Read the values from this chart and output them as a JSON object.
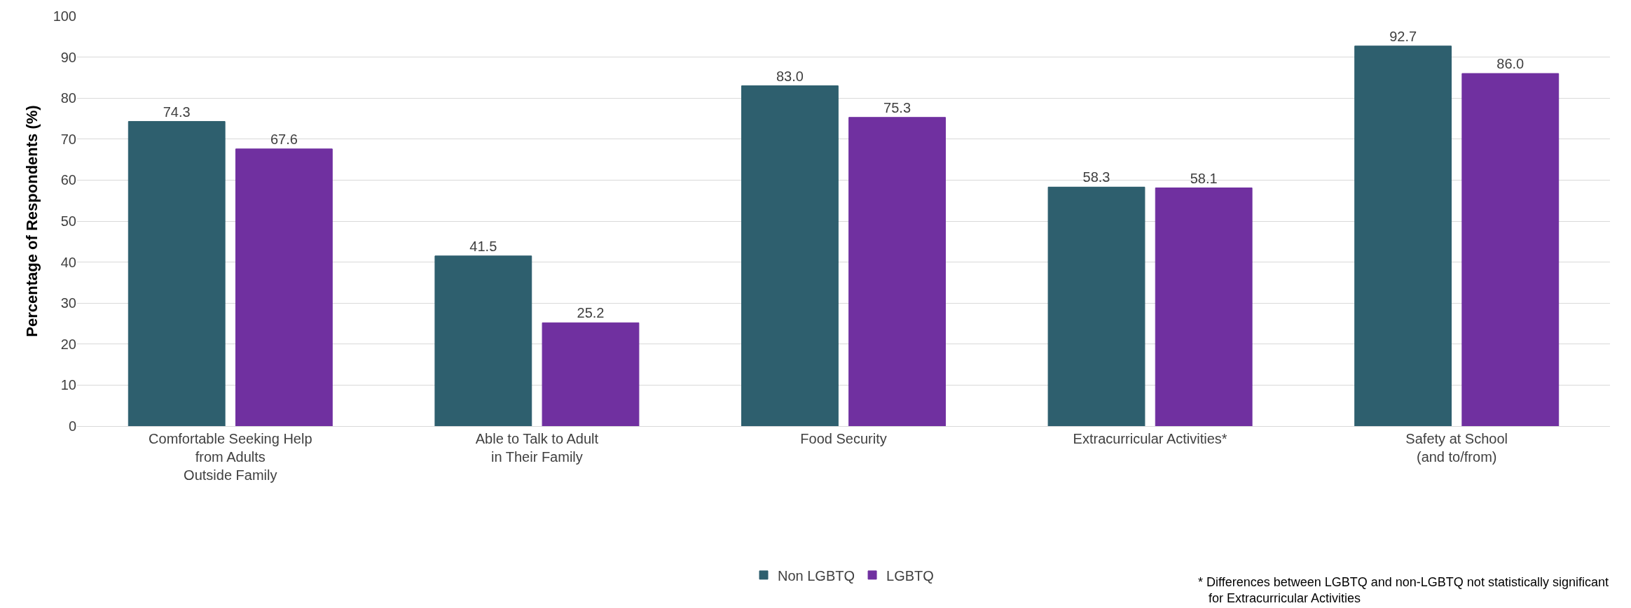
{
  "chart_data": {
    "type": "bar",
    "ylabel": "Percentage of Respondents (%)",
    "categories": [
      "Comfortable Seeking Help\nfrom Adults\nOutside Family",
      "Able to Talk to Adult\nin Their Family",
      "Food Security",
      "Extracurricular Activities*",
      "Safety at School\n(and to/from)"
    ],
    "series": [
      {
        "name": "Non LGBTQ",
        "color": "#2e5f6e",
        "values": [
          74.3,
          41.5,
          83.0,
          58.3,
          92.7
        ],
        "value_labels": [
          "74.3",
          "41.5",
          "83.0",
          "58.3",
          "92.7"
        ]
      },
      {
        "name": "LGBTQ",
        "color": "#7030a0",
        "values": [
          67.6,
          25.2,
          75.3,
          58.1,
          86.0
        ],
        "value_labels": [
          "67.6",
          "25.2",
          "75.3",
          "58.1",
          "86.0"
        ]
      }
    ],
    "ylim": [
      0,
      100
    ],
    "yticks": [
      0,
      10,
      20,
      30,
      40,
      50,
      60,
      70,
      80,
      90,
      100
    ],
    "grid": "y",
    "legend": "bottom",
    "annotations": [
      "* Differences between LGBTQ and non-LGBTQ not statistically significant\n   for Extracurricular Activities"
    ]
  }
}
